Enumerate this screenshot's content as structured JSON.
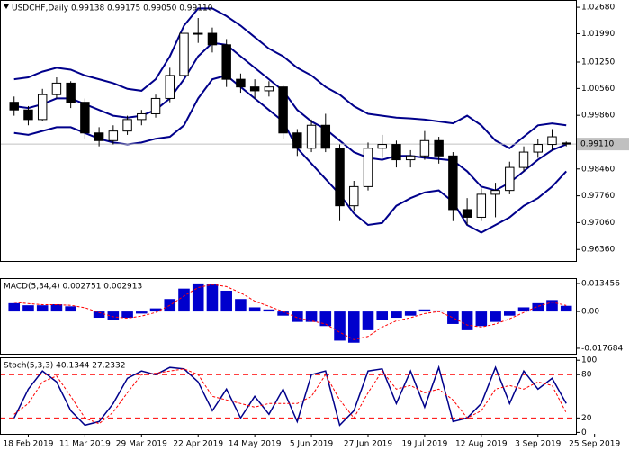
{
  "chart_data": [
    {
      "type": "candlestick",
      "title": "USDCHF,Daily  0.99138 0.99175 0.99050 0.99110",
      "ylim": [
        0.9606,
        1.0287
      ],
      "yticks": [
        {
          "value": 1.0268,
          "label": "1.02680"
        },
        {
          "value": 1.0199,
          "label": "1.01990"
        },
        {
          "value": 1.0125,
          "label": "1.01250"
        },
        {
          "value": 1.0056,
          "label": "1.00560"
        },
        {
          "value": 0.9986,
          "label": "0.99860"
        },
        {
          "value": 0.9846,
          "label": "0.98460"
        },
        {
          "value": 0.9776,
          "label": "0.97760"
        },
        {
          "value": 0.9706,
          "label": "0.97060"
        },
        {
          "value": 0.9636,
          "label": "0.96360"
        }
      ],
      "last_price": {
        "value": 0.9911,
        "label": "0.99110"
      },
      "xlim": [
        -1,
        43.5
      ],
      "xticks": [
        {
          "value": 1,
          "label": "18 Feb 2019"
        },
        {
          "value": 5,
          "label": "11 Mar 2019"
        },
        {
          "value": 9,
          "label": "29 Mar 2019"
        },
        {
          "value": 13,
          "label": "22 Apr 2019"
        },
        {
          "value": 17,
          "label": "14 May 2019"
        },
        {
          "value": 21,
          "label": "5 Jun 2019"
        },
        {
          "value": 25,
          "label": "27 Jun 2019"
        },
        {
          "value": 29,
          "label": "19 Jul 2019"
        },
        {
          "value": 33,
          "label": "12 Aug 2019"
        },
        {
          "value": 37,
          "label": "3 Sep 2019"
        },
        {
          "value": 41,
          "label": "25 Sep 2019"
        }
      ],
      "open": [
        1.002,
        1.0,
        0.9975,
        1.004,
        1.007,
        1.002,
        0.994,
        0.992,
        0.9945,
        0.9975,
        0.999,
        1.003,
        1.009,
        1.02,
        1.02,
        1.017,
        1.008,
        1.006,
        1.005,
        1.006,
        0.994,
        0.99,
        0.996,
        0.99,
        0.975,
        0.98,
        0.99,
        0.991,
        0.987,
        0.988,
        0.992,
        0.988,
        0.974,
        0.972,
        0.978,
        0.979,
        0.985,
        0.989,
        0.991,
        0.99138
      ],
      "high": [
        1.0035,
        1.001,
        1.0055,
        1.0085,
        1.0075,
        1.003,
        0.9955,
        0.996,
        0.9985,
        1.0,
        1.004,
        1.011,
        1.023,
        1.024,
        1.0215,
        1.0185,
        1.0095,
        1.008,
        1.0075,
        1.0065,
        0.995,
        0.9975,
        0.999,
        0.991,
        0.9815,
        0.9915,
        0.9935,
        0.992,
        0.9895,
        0.9945,
        0.993,
        0.989,
        0.977,
        0.9795,
        0.981,
        0.9865,
        0.9905,
        0.9925,
        0.995,
        0.99175
      ],
      "low": [
        0.9985,
        0.996,
        0.997,
        1.003,
        1.0005,
        0.9925,
        0.9905,
        0.991,
        0.9935,
        0.996,
        0.998,
        1.002,
        1.0085,
        1.0175,
        1.015,
        1.006,
        1.0045,
        1.003,
        1.0035,
        0.9925,
        0.988,
        0.989,
        0.989,
        0.971,
        0.9735,
        0.979,
        0.9875,
        0.985,
        0.985,
        0.987,
        0.986,
        0.971,
        0.97,
        0.971,
        0.972,
        0.978,
        0.984,
        0.9875,
        0.9895,
        0.9905
      ],
      "close": [
        1.0,
        0.9975,
        1.004,
        1.007,
        1.002,
        0.994,
        0.992,
        0.9945,
        0.9975,
        0.999,
        1.003,
        1.009,
        1.02,
        1.02,
        1.017,
        1.008,
        1.006,
        1.005,
        1.006,
        0.994,
        0.99,
        0.996,
        0.99,
        0.975,
        0.98,
        0.99,
        0.991,
        0.987,
        0.988,
        0.992,
        0.988,
        0.974,
        0.972,
        0.978,
        0.979,
        0.985,
        0.989,
        0.991,
        0.993,
        0.9911
      ],
      "band_color": "#00008b",
      "upper": [
        1.008,
        1.0085,
        1.01,
        1.011,
        1.0105,
        1.009,
        1.008,
        1.007,
        1.0055,
        1.005,
        1.008,
        1.014,
        1.022,
        1.0265,
        1.0265,
        1.0245,
        1.022,
        1.019,
        1.016,
        1.014,
        1.011,
        1.009,
        1.006,
        1.004,
        1.001,
        0.999,
        0.9985,
        0.998,
        0.9978,
        0.9975,
        0.997,
        0.9965,
        0.9985,
        0.996,
        0.992,
        0.99,
        0.993,
        0.996,
        0.9965,
        0.996
      ],
      "middle": [
        1.001,
        1.0005,
        1.0015,
        1.003,
        1.003,
        1.0015,
        1.0,
        0.9985,
        0.998,
        0.9985,
        1.0,
        1.003,
        1.008,
        1.014,
        1.0175,
        1.017,
        1.014,
        1.011,
        1.008,
        1.005,
        1.0,
        0.997,
        0.995,
        0.992,
        0.989,
        0.9875,
        0.987,
        0.988,
        0.988,
        0.9875,
        0.9872,
        0.9868,
        0.984,
        0.98,
        0.979,
        0.981,
        0.984,
        0.987,
        0.9895,
        0.991
      ],
      "lower": [
        0.994,
        0.9935,
        0.9945,
        0.9955,
        0.9955,
        0.994,
        0.9925,
        0.9915,
        0.991,
        0.9915,
        0.9925,
        0.993,
        0.996,
        1.003,
        1.008,
        1.009,
        1.006,
        1.003,
        1.0,
        0.997,
        0.99,
        0.986,
        0.982,
        0.978,
        0.973,
        0.97,
        0.9705,
        0.975,
        0.977,
        0.9785,
        0.979,
        0.976,
        0.97,
        0.968,
        0.97,
        0.972,
        0.975,
        0.977,
        0.98,
        0.984
      ]
    },
    {
      "type": "macd",
      "title": "MACD(5,34,4) 0.002751 0.002913",
      "ylim": [
        -0.0203,
        0.01605
      ],
      "yticks": [
        0.013456,
        {
          "value": 0,
          "label": "0.00"
        },
        -0.017684
      ],
      "color": "#0000cd",
      "values": [
        0.004,
        0.003,
        0.003,
        0.0035,
        0.0025,
        0.0,
        -0.003,
        -0.004,
        -0.003,
        -0.001,
        0.0015,
        0.006,
        0.011,
        0.0135,
        0.013,
        0.01,
        0.006,
        0.002,
        0.001,
        -0.002,
        -0.005,
        -0.005,
        -0.007,
        -0.014,
        -0.015,
        -0.009,
        -0.004,
        -0.003,
        -0.002,
        0.001,
        0.0005,
        -0.006,
        -0.009,
        -0.007,
        -0.005,
        -0.002,
        0.002,
        0.004,
        0.0055,
        0.002751
      ],
      "signal_color": "#ff0000",
      "signal": [
        0.0045,
        0.0038,
        0.0033,
        0.0033,
        0.003,
        0.0018,
        -0.0005,
        -0.0025,
        -0.0032,
        -0.0022,
        -0.0005,
        0.003,
        0.0075,
        0.0115,
        0.013,
        0.012,
        0.009,
        0.005,
        0.0025,
        0.0,
        -0.003,
        -0.0045,
        -0.006,
        -0.01,
        -0.0135,
        -0.012,
        -0.0075,
        -0.0045,
        -0.003,
        -0.001,
        0.0,
        -0.003,
        -0.0065,
        -0.0075,
        -0.006,
        -0.0035,
        -0.0005,
        0.0025,
        0.0045,
        0.002913
      ]
    },
    {
      "type": "line",
      "title": "Stoch(5,3,3) 40.1344 27.2332",
      "ylim": [
        -2,
        104
      ],
      "yticks": [
        100,
        80,
        20,
        0
      ],
      "levels": [
        80,
        20
      ],
      "level_color": "#ff0000",
      "series": [
        {
          "color": "#00008b",
          "dashed": false,
          "values": [
            20,
            60,
            85,
            70,
            30,
            10,
            15,
            40,
            75,
            85,
            80,
            90,
            88,
            70,
            30,
            60,
            20,
            50,
            25,
            60,
            15,
            80,
            85,
            10,
            30,
            85,
            88,
            40,
            85,
            35,
            90,
            15,
            20,
            40,
            90,
            40,
            85,
            60,
            75,
            40.1344
          ]
        },
        {
          "color": "#ff0000",
          "dashed": true,
          "values": [
            25,
            40,
            70,
            78,
            50,
            20,
            12,
            28,
            55,
            80,
            82,
            85,
            88,
            80,
            50,
            45,
            40,
            35,
            40,
            40,
            40,
            50,
            80,
            45,
            20,
            55,
            85,
            60,
            65,
            55,
            60,
            45,
            20,
            30,
            60,
            65,
            60,
            70,
            65,
            27.2332
          ]
        }
      ]
    }
  ]
}
